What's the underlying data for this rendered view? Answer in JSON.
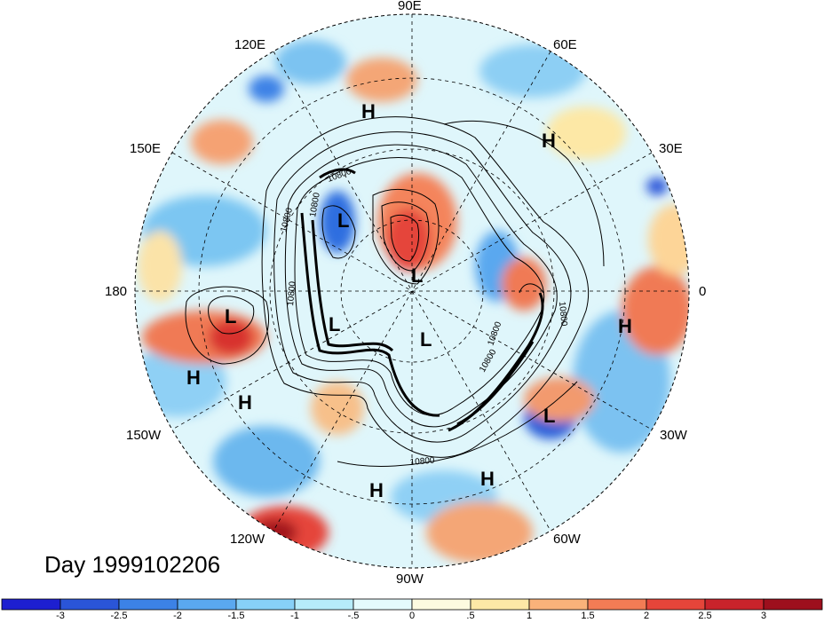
{
  "title_label": "Day 1999102206",
  "longitude_labels": {
    "top": "90E",
    "upper_left": "120E",
    "upper_right": "60E",
    "left_upper": "150E",
    "right_upper": "30E",
    "left": "180",
    "right": "0",
    "left_lower": "150W",
    "right_lower": "30W",
    "lower_left": "120W",
    "lower_right": "60W",
    "bottom": "90W"
  },
  "pressure_centers": [
    {
      "type": "H",
      "label": "H"
    },
    {
      "type": "H",
      "label": "H"
    },
    {
      "type": "L",
      "label": "L"
    },
    {
      "type": "L",
      "label": "L"
    },
    {
      "type": "L",
      "label": "L"
    },
    {
      "type": "L",
      "label": "L"
    },
    {
      "type": "L",
      "label": "L"
    },
    {
      "type": "H",
      "label": "H"
    },
    {
      "type": "H",
      "label": "H"
    },
    {
      "type": "H",
      "label": "H"
    },
    {
      "type": "L",
      "label": "L"
    },
    {
      "type": "H",
      "label": "H"
    },
    {
      "type": "H",
      "label": "H"
    }
  ],
  "contour_labels": [
    "10800",
    "10800",
    "10800",
    "10800",
    "10800",
    "10800",
    "10800",
    "10800"
  ],
  "colorbar": {
    "colors": [
      "#1d1fd0",
      "#2a55d8",
      "#3c82e6",
      "#5aa8ef",
      "#87d0f7",
      "#b6ecfa",
      "#e4fbfd",
      "#fdfbe0",
      "#fde8a6",
      "#f9b27a",
      "#f27c55",
      "#e5453a",
      "#c9232b",
      "#9d0f1d"
    ],
    "tick_labels": [
      "-3",
      "-2.5",
      "-2",
      "-1.5",
      "-1",
      "-.5",
      "0",
      ".5",
      "1",
      "1.5",
      "2",
      "2.5",
      "3"
    ]
  }
}
